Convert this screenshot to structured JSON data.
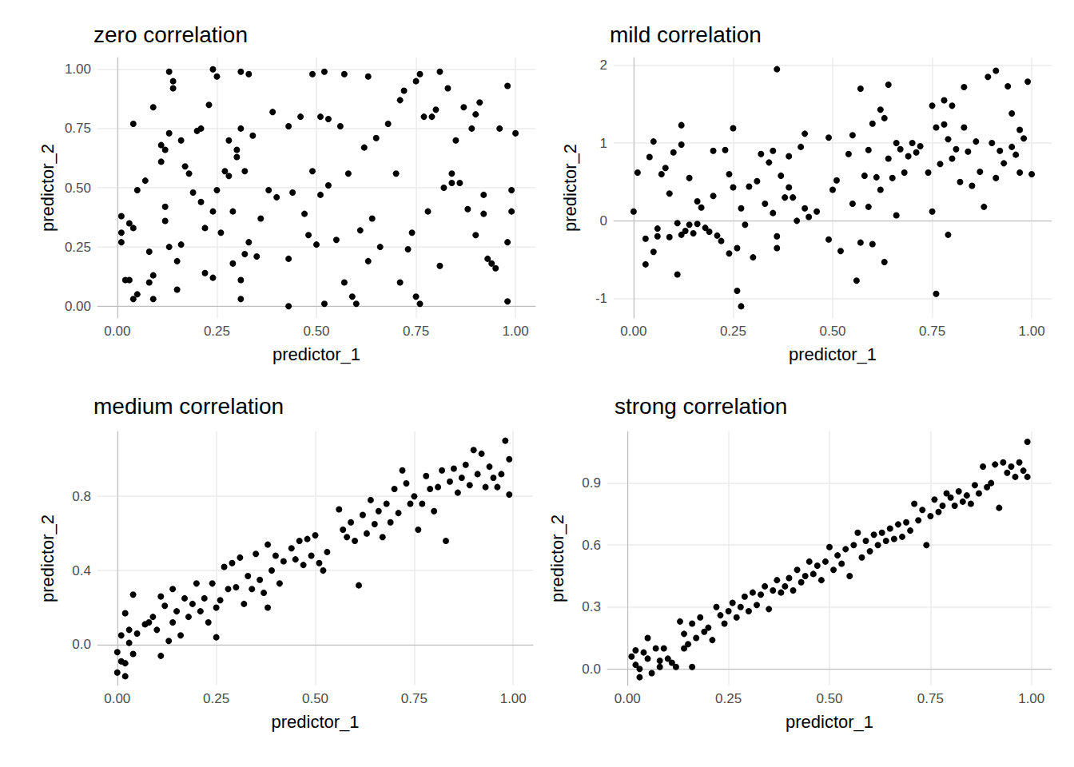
{
  "chart_data": [
    {
      "type": "scatter",
      "title": "zero correlation",
      "x_label": "predictor_1",
      "y_label": "predictor_2",
      "color": "#000000",
      "marker": "circle",
      "grid": true,
      "xlim": [
        -0.05,
        1.05
      ],
      "ylim": [
        -0.05,
        1.05
      ],
      "xticks": [
        {
          "value": 0,
          "label": "0.00"
        },
        {
          "value": 0.25,
          "label": "0.25"
        },
        {
          "value": 0.5,
          "label": "0.50"
        },
        {
          "value": 0.75,
          "label": "0.75"
        },
        {
          "value": 1,
          "label": "1.00"
        }
      ],
      "yticks": [
        {
          "value": 0,
          "label": "0.00"
        },
        {
          "value": 0.25,
          "label": "0.25"
        },
        {
          "value": 0.5,
          "label": "0.50"
        },
        {
          "value": 0.75,
          "label": "0.75"
        },
        {
          "value": 1,
          "label": "1.00"
        }
      ],
      "x": [
        0.01,
        0.01,
        0.01,
        0.02,
        0.03,
        0.03,
        0.04,
        0.04,
        0.04,
        0.05,
        0.05,
        0.07,
        0.08,
        0.08,
        0.09,
        0.09,
        0.09,
        0.11,
        0.11,
        0.12,
        0.12,
        0.12,
        0.13,
        0.13,
        0.13,
        0.14,
        0.14,
        0.15,
        0.15,
        0.16,
        0.16,
        0.17,
        0.18,
        0.19,
        0.2,
        0.21,
        0.21,
        0.22,
        0.22,
        0.23,
        0.24,
        0.24,
        0.24,
        0.25,
        0.25,
        0.26,
        0.27,
        0.28,
        0.28,
        0.29,
        0.29,
        0.3,
        0.3,
        0.31,
        0.31,
        0.31,
        0.31,
        0.32,
        0.32,
        0.33,
        0.33,
        0.34,
        0.35,
        0.36,
        0.38,
        0.39,
        0.4,
        0.43,
        0.43,
        0.43,
        0.44,
        0.46,
        0.47,
        0.48,
        0.49,
        0.49,
        0.5,
        0.51,
        0.51,
        0.52,
        0.52,
        0.53,
        0.53,
        0.55,
        0.56,
        0.57,
        0.57,
        0.58,
        0.59,
        0.6,
        0.61,
        0.62,
        0.63,
        0.63,
        0.64,
        0.65,
        0.66,
        0.68,
        0.7,
        0.71,
        0.71,
        0.72,
        0.73,
        0.74,
        0.75,
        0.75,
        0.76,
        0.76,
        0.77,
        0.78,
        0.79,
        0.8,
        0.81,
        0.81,
        0.82,
        0.83,
        0.84,
        0.84,
        0.85,
        0.86,
        0.87,
        0.88,
        0.89,
        0.9,
        0.9,
        0.91,
        0.92,
        0.92,
        0.93,
        0.94,
        0.95,
        0.96,
        0.98,
        0.98,
        0.98,
        0.99,
        0.99,
        1.0
      ],
      "values": [
        0.31,
        0.27,
        0.38,
        0.11,
        0.11,
        0.35,
        0.33,
        0.77,
        0.03,
        0.49,
        0.05,
        0.53,
        0.23,
        0.1,
        0.13,
        0.84,
        0.03,
        0.68,
        0.61,
        0.66,
        0.42,
        0.36,
        0.99,
        0.73,
        0.25,
        0.95,
        0.92,
        0.07,
        0.19,
        0.7,
        0.26,
        0.59,
        0.56,
        0.48,
        0.74,
        0.75,
        0.44,
        0.14,
        0.33,
        0.85,
        1.0,
        0.4,
        0.12,
        0.97,
        0.49,
        0.31,
        0.57,
        0.7,
        0.55,
        0.18,
        0.4,
        0.63,
        0.66,
        0.75,
        0.11,
        0.03,
        0.99,
        0.57,
        0.22,
        0.98,
        0.27,
        0.72,
        0.21,
        0.37,
        0.49,
        0.82,
        0.46,
        0.76,
        0.2,
        0.0,
        0.48,
        0.8,
        0.39,
        0.3,
        0.98,
        0.57,
        0.26,
        0.8,
        0.47,
        0.99,
        0.01,
        0.79,
        0.51,
        0.28,
        0.76,
        0.1,
        0.98,
        0.56,
        0.04,
        0.01,
        0.32,
        0.67,
        0.97,
        0.19,
        0.37,
        0.71,
        0.25,
        0.77,
        0.56,
        0.1,
        0.87,
        0.91,
        0.24,
        0.31,
        0.04,
        0.95,
        0.01,
        0.98,
        0.8,
        0.4,
        0.8,
        0.83,
        0.99,
        0.17,
        0.5,
        0.92,
        0.56,
        0.52,
        0.7,
        0.52,
        0.84,
        0.41,
        0.75,
        0.81,
        0.3,
        0.86,
        0.39,
        0.47,
        0.2,
        0.18,
        0.16,
        0.75,
        0.93,
        0.27,
        0.02,
        0.49,
        0.4,
        0.73
      ]
    },
    {
      "type": "scatter",
      "title": "mild correlation",
      "x_label": "predictor_1",
      "y_label": "predictor_2",
      "color": "#000000",
      "marker": "circle",
      "grid": true,
      "xlim": [
        -0.05,
        1.05
      ],
      "ylim": [
        -1.25,
        2.1
      ],
      "xticks": [
        {
          "value": 0,
          "label": "0.00"
        },
        {
          "value": 0.25,
          "label": "0.25"
        },
        {
          "value": 0.5,
          "label": "0.50"
        },
        {
          "value": 0.75,
          "label": "0.75"
        },
        {
          "value": 1,
          "label": "1.00"
        }
      ],
      "yticks": [
        -1,
        0,
        1,
        2
      ],
      "x": [
        0.0,
        0.01,
        0.03,
        0.03,
        0.04,
        0.05,
        0.05,
        0.06,
        0.06,
        0.07,
        0.08,
        0.09,
        0.09,
        0.1,
        0.11,
        0.11,
        0.12,
        0.12,
        0.12,
        0.13,
        0.14,
        0.14,
        0.15,
        0.16,
        0.16,
        0.17,
        0.18,
        0.19,
        0.2,
        0.2,
        0.21,
        0.22,
        0.23,
        0.24,
        0.24,
        0.25,
        0.25,
        0.26,
        0.26,
        0.27,
        0.27,
        0.28,
        0.29,
        0.3,
        0.31,
        0.32,
        0.33,
        0.34,
        0.35,
        0.35,
        0.36,
        0.36,
        0.36,
        0.37,
        0.38,
        0.39,
        0.39,
        0.4,
        0.41,
        0.42,
        0.43,
        0.43,
        0.44,
        0.46,
        0.49,
        0.49,
        0.5,
        0.51,
        0.52,
        0.54,
        0.55,
        0.55,
        0.56,
        0.57,
        0.57,
        0.58,
        0.59,
        0.59,
        0.6,
        0.6,
        0.61,
        0.62,
        0.62,
        0.63,
        0.63,
        0.64,
        0.64,
        0.65,
        0.66,
        0.66,
        0.67,
        0.68,
        0.69,
        0.7,
        0.71,
        0.72,
        0.74,
        0.75,
        0.75,
        0.76,
        0.76,
        0.77,
        0.78,
        0.78,
        0.79,
        0.79,
        0.8,
        0.8,
        0.81,
        0.82,
        0.83,
        0.83,
        0.84,
        0.85,
        0.86,
        0.87,
        0.88,
        0.89,
        0.9,
        0.91,
        0.91,
        0.92,
        0.93,
        0.94,
        0.95,
        0.95,
        0.96,
        0.97,
        0.97,
        0.98,
        0.99,
        1.0
      ],
      "values": [
        0.12,
        0.62,
        -0.23,
        -0.56,
        0.82,
        1.02,
        -0.4,
        -0.2,
        -0.1,
        0.6,
        0.68,
        0.35,
        -0.21,
        0.88,
        -0.69,
        -0.03,
        1.23,
        0.98,
        -0.18,
        -0.13,
        0.55,
        -0.05,
        -0.16,
        0.25,
        -0.04,
        0.17,
        -0.09,
        -0.14,
        0.9,
        0.32,
        -0.19,
        -0.26,
        0.91,
        0.6,
        -0.42,
        1.19,
        0.43,
        -0.35,
        -0.9,
        -1.1,
        0.16,
        -0.05,
        0.44,
        -0.47,
        0.51,
        0.86,
        0.22,
        0.75,
        0.9,
        0.1,
        -0.35,
        -0.2,
        1.95,
        0.58,
        0.3,
        0.83,
        0.43,
        0.3,
        0.0,
        0.95,
        1.12,
        0.16,
        0.05,
        0.12,
        1.07,
        -0.24,
        0.4,
        0.52,
        -0.39,
        0.86,
        1.1,
        0.22,
        -0.77,
        1.7,
        -0.28,
        0.58,
        0.91,
        0.18,
        1.25,
        -0.3,
        0.56,
        1.43,
        0.4,
        1.32,
        -0.53,
        1.75,
        0.8,
        0.55,
        1.0,
        0.07,
        0.92,
        0.62,
        0.83,
        1.0,
        0.88,
        0.96,
        0.62,
        1.48,
        0.12,
        1.2,
        -0.94,
        0.73,
        1.55,
        1.24,
        1.05,
        -0.18,
        1.48,
        0.8,
        0.92,
        0.5,
        1.72,
        1.2,
        0.89,
        0.45,
        1.02,
        0.63,
        0.18,
        1.85,
        1.0,
        1.93,
        0.55,
        0.9,
        0.74,
        1.73,
        1.38,
        0.95,
        0.85,
        1.17,
        0.62,
        1.06,
        1.79,
        0.6
      ]
    },
    {
      "type": "scatter",
      "title": "medium correlation",
      "x_label": "predictor_1",
      "y_label": "predictor_2",
      "color": "#000000",
      "marker": "circle",
      "grid": true,
      "xlim": [
        -0.05,
        1.05
      ],
      "ylim": [
        -0.22,
        1.15
      ],
      "xticks": [
        {
          "value": 0,
          "label": "0.00"
        },
        {
          "value": 0.25,
          "label": "0.25"
        },
        {
          "value": 0.5,
          "label": "0.50"
        },
        {
          "value": 0.75,
          "label": "0.75"
        },
        {
          "value": 1,
          "label": "1.00"
        }
      ],
      "yticks": [
        {
          "value": 0,
          "label": "0.0"
        },
        0.4,
        0.8
      ],
      "x": [
        0.0,
        0.0,
        0.01,
        0.01,
        0.02,
        0.02,
        0.02,
        0.03,
        0.03,
        0.04,
        0.04,
        0.05,
        0.07,
        0.08,
        0.09,
        0.1,
        0.11,
        0.11,
        0.12,
        0.13,
        0.14,
        0.14,
        0.15,
        0.16,
        0.17,
        0.18,
        0.19,
        0.2,
        0.21,
        0.22,
        0.23,
        0.24,
        0.25,
        0.25,
        0.26,
        0.27,
        0.28,
        0.29,
        0.3,
        0.31,
        0.32,
        0.33,
        0.34,
        0.35,
        0.36,
        0.37,
        0.38,
        0.38,
        0.39,
        0.4,
        0.41,
        0.42,
        0.44,
        0.45,
        0.46,
        0.47,
        0.48,
        0.49,
        0.5,
        0.51,
        0.52,
        0.53,
        0.56,
        0.57,
        0.58,
        0.59,
        0.6,
        0.61,
        0.62,
        0.63,
        0.64,
        0.65,
        0.66,
        0.67,
        0.68,
        0.69,
        0.7,
        0.71,
        0.72,
        0.73,
        0.74,
        0.75,
        0.76,
        0.77,
        0.78,
        0.79,
        0.8,
        0.81,
        0.82,
        0.83,
        0.84,
        0.85,
        0.86,
        0.87,
        0.88,
        0.89,
        0.9,
        0.91,
        0.92,
        0.93,
        0.94,
        0.95,
        0.96,
        0.97,
        0.98,
        0.99,
        0.99
      ],
      "values": [
        -0.04,
        -0.15,
        -0.09,
        0.05,
        0.17,
        -0.17,
        -0.1,
        0.01,
        0.08,
        0.27,
        -0.05,
        0.06,
        0.11,
        0.12,
        0.15,
        0.08,
        0.26,
        -0.06,
        0.21,
        0.02,
        0.3,
        0.12,
        0.18,
        0.05,
        0.25,
        0.15,
        0.22,
        0.33,
        0.18,
        0.25,
        0.12,
        0.33,
        0.04,
        0.2,
        0.24,
        0.42,
        0.3,
        0.44,
        0.31,
        0.47,
        0.22,
        0.37,
        0.3,
        0.49,
        0.35,
        0.28,
        0.54,
        0.2,
        0.4,
        0.48,
        0.33,
        0.45,
        0.52,
        0.46,
        0.56,
        0.43,
        0.57,
        0.48,
        0.59,
        0.44,
        0.4,
        0.5,
        0.73,
        0.62,
        0.58,
        0.66,
        0.56,
        0.32,
        0.7,
        0.6,
        0.78,
        0.65,
        0.72,
        0.58,
        0.76,
        0.66,
        0.84,
        0.71,
        0.94,
        0.87,
        0.76,
        0.8,
        0.62,
        0.76,
        0.91,
        0.84,
        0.72,
        0.85,
        0.94,
        0.56,
        0.88,
        0.95,
        0.82,
        0.9,
        0.97,
        0.86,
        1.05,
        0.92,
        1.03,
        0.85,
        0.96,
        0.9,
        0.85,
        0.92,
        1.1,
        1.0,
        0.81
      ]
    },
    {
      "type": "scatter",
      "title": "strong correlation",
      "x_label": "predictor_1",
      "y_label": "predictor_2",
      "color": "#000000",
      "marker": "circle",
      "grid": true,
      "xlim": [
        -0.05,
        1.05
      ],
      "ylim": [
        -0.08,
        1.15
      ],
      "xticks": [
        {
          "value": 0,
          "label": "0.00"
        },
        {
          "value": 0.25,
          "label": "0.25"
        },
        {
          "value": 0.5,
          "label": "0.50"
        },
        {
          "value": 0.75,
          "label": "0.75"
        },
        {
          "value": 1,
          "label": "1.00"
        }
      ],
      "yticks": [
        {
          "value": 0,
          "label": "0.0"
        },
        0.3,
        0.6,
        0.9
      ],
      "x": [
        0.01,
        0.02,
        0.02,
        0.03,
        0.03,
        0.04,
        0.05,
        0.05,
        0.06,
        0.07,
        0.08,
        0.08,
        0.09,
        0.1,
        0.11,
        0.12,
        0.13,
        0.14,
        0.14,
        0.15,
        0.16,
        0.16,
        0.17,
        0.18,
        0.19,
        0.2,
        0.21,
        0.22,
        0.23,
        0.24,
        0.25,
        0.26,
        0.27,
        0.28,
        0.29,
        0.3,
        0.31,
        0.32,
        0.33,
        0.34,
        0.35,
        0.36,
        0.37,
        0.38,
        0.39,
        0.4,
        0.41,
        0.42,
        0.43,
        0.44,
        0.45,
        0.46,
        0.47,
        0.48,
        0.49,
        0.5,
        0.51,
        0.52,
        0.53,
        0.54,
        0.55,
        0.56,
        0.57,
        0.58,
        0.59,
        0.6,
        0.61,
        0.62,
        0.63,
        0.64,
        0.65,
        0.66,
        0.67,
        0.68,
        0.69,
        0.7,
        0.71,
        0.72,
        0.73,
        0.74,
        0.75,
        0.76,
        0.77,
        0.78,
        0.79,
        0.8,
        0.81,
        0.82,
        0.83,
        0.84,
        0.85,
        0.86,
        0.87,
        0.88,
        0.89,
        0.9,
        0.91,
        0.92,
        0.93,
        0.94,
        0.95,
        0.96,
        0.97,
        0.98,
        0.99,
        0.99
      ],
      "values": [
        0.06,
        0.02,
        0.09,
        0.0,
        -0.04,
        0.08,
        0.15,
        0.05,
        -0.02,
        0.1,
        0.04,
        0.01,
        0.1,
        0.05,
        0.03,
        0.01,
        0.23,
        0.17,
        0.1,
        0.12,
        0.22,
        0.01,
        0.15,
        0.25,
        0.18,
        0.2,
        0.14,
        0.3,
        0.26,
        0.22,
        0.28,
        0.32,
        0.25,
        0.3,
        0.35,
        0.28,
        0.37,
        0.31,
        0.36,
        0.4,
        0.29,
        0.38,
        0.43,
        0.37,
        0.4,
        0.44,
        0.38,
        0.48,
        0.42,
        0.45,
        0.52,
        0.46,
        0.5,
        0.43,
        0.52,
        0.59,
        0.48,
        0.55,
        0.51,
        0.58,
        0.45,
        0.6,
        0.66,
        0.54,
        0.62,
        0.57,
        0.65,
        0.6,
        0.66,
        0.62,
        0.68,
        0.63,
        0.7,
        0.64,
        0.71,
        0.67,
        0.8,
        0.72,
        0.77,
        0.6,
        0.74,
        0.82,
        0.76,
        0.79,
        0.85,
        0.83,
        0.79,
        0.86,
        0.81,
        0.84,
        0.8,
        0.89,
        0.85,
        0.98,
        0.88,
        0.9,
        0.99,
        0.78,
        1.0,
        0.95,
        0.98,
        0.93,
        1.0,
        0.96,
        1.1,
        0.93
      ]
    }
  ]
}
